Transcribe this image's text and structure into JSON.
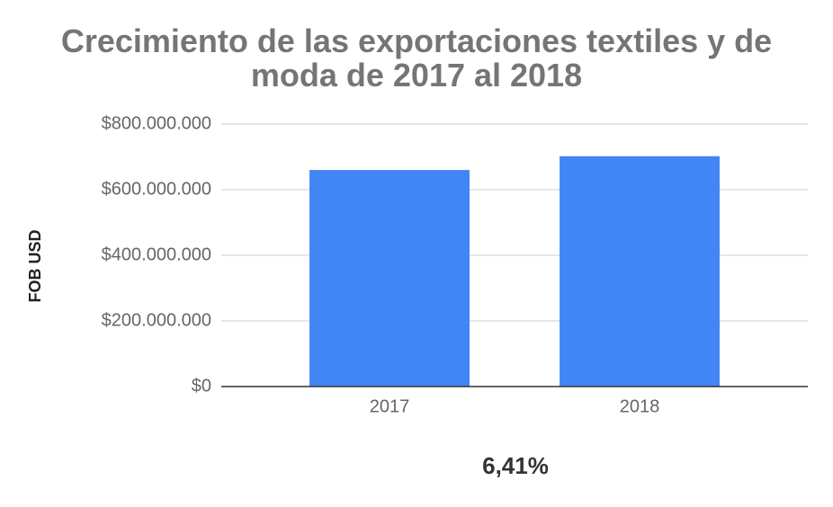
{
  "chart_data": {
    "type": "bar",
    "title": "Crecimiento de las exportaciones textiles y de moda de 2017 al 2018",
    "y_label": "FOB USD",
    "annotation": "6,41%",
    "categories": [
      "2017",
      "2018"
    ],
    "values": [
      660000000,
      702000000
    ],
    "color": "#4285f4",
    "ylim": [
      0,
      800000000
    ],
    "yticks": [
      {
        "value": 0,
        "label": "$0"
      },
      {
        "value": 200000000,
        "label": "$200.000.000"
      },
      {
        "value": 400000000,
        "label": "$400.000.000"
      },
      {
        "value": 600000000,
        "label": "$600.000.000"
      },
      {
        "value": 800000000,
        "label": "$800.000.000"
      }
    ],
    "grid": true
  }
}
